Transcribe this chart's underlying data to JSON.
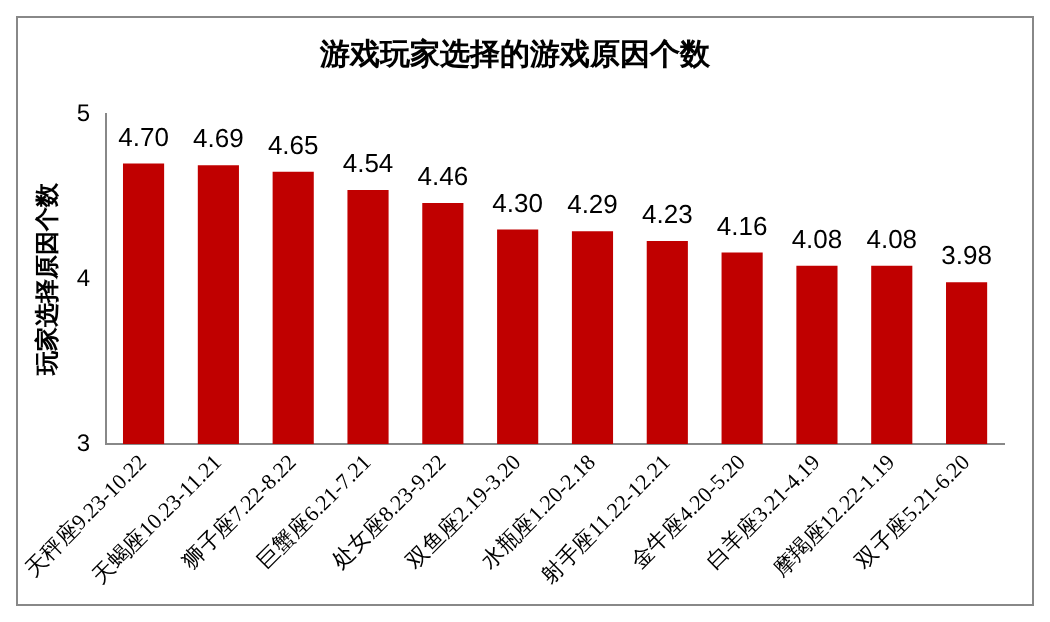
{
  "chart_data": {
    "type": "bar",
    "title": "游戏玩家选择的游戏原因个数",
    "ylabel": "玩家选择原因个数",
    "categories": [
      "天秤座9.23-10.22",
      "天蝎座10.23-11.21",
      "狮子座7.22-8.22",
      "巨蟹座6.21-7.21",
      "处女座8.23-9.22",
      "双鱼座2.19-3.20",
      "水瓶座1.20-2.18",
      "射手座11.22-12.21",
      "金牛座4.20-5.20",
      "白羊座3.21-4.19",
      "摩羯座12.22-1.19",
      "双子座5.21-6.20"
    ],
    "values": [
      4.7,
      4.69,
      4.65,
      4.54,
      4.46,
      4.3,
      4.29,
      4.23,
      4.16,
      4.08,
      4.08,
      3.98
    ],
    "value_labels": [
      "4.70",
      "4.69",
      "4.65",
      "4.54",
      "4.46",
      "4.30",
      "4.29",
      "4.23",
      "4.16",
      "4.08",
      "4.08",
      "3.98"
    ],
    "color": "#c00000",
    "ylim": [
      3,
      5
    ],
    "yticks": [
      3,
      4,
      5
    ],
    "grid": false,
    "legend": false
  }
}
